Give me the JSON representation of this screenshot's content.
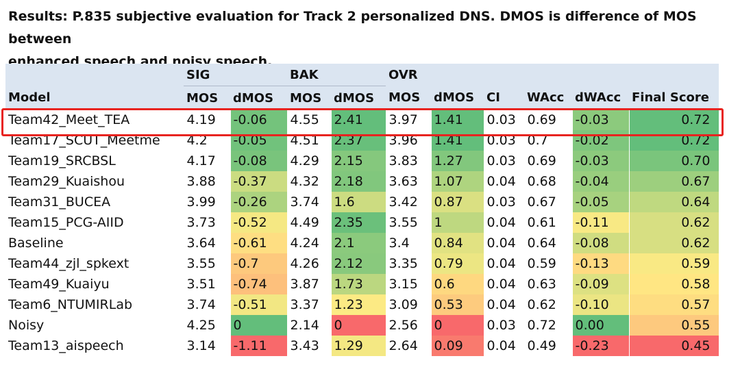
{
  "caption": {
    "line1": "Results: P.835 subjective evaluation for Track 2 personalized DNS. DMOS is difference of MOS between",
    "line2": "enhanced speech and noisy speech."
  },
  "table": {
    "groups": [
      "SIG",
      "BAK",
      "OVR"
    ],
    "headers": [
      "Model",
      "MOS",
      "dMOS",
      "MOS",
      "dMOS",
      "MOS",
      "dMOS",
      "CI",
      "WAcc",
      "dWAcc",
      "Final Score"
    ],
    "rows": [
      {
        "model": "Team42_Meet_TEA",
        "sig_mos": "4.19",
        "sig_dmos": "-0.06",
        "bak_mos": "4.55",
        "bak_dmos": "2.41",
        "ovr_mos": "3.97",
        "ovr_dmos": "1.41",
        "ci": "0.03",
        "wacc": "0.69",
        "dwacc": "-0.03",
        "final": "0.72"
      },
      {
        "model": "Team17_SCUT_Meetme",
        "sig_mos": "4.2",
        "sig_dmos": "-0.05",
        "bak_mos": "4.51",
        "bak_dmos": "2.37",
        "ovr_mos": "3.96",
        "ovr_dmos": "1.41",
        "ci": "0.03",
        "wacc": "0.7",
        "dwacc": "-0.02",
        "final": "0.72"
      },
      {
        "model": "Team19_SRCBSL",
        "sig_mos": "4.17",
        "sig_dmos": "-0.08",
        "bak_mos": "4.29",
        "bak_dmos": "2.15",
        "ovr_mos": "3.83",
        "ovr_dmos": "1.27",
        "ci": "0.03",
        "wacc": "0.69",
        "dwacc": "-0.03",
        "final": "0.70"
      },
      {
        "model": "Team29_Kuaishou",
        "sig_mos": "3.88",
        "sig_dmos": "-0.37",
        "bak_mos": "4.32",
        "bak_dmos": "2.18",
        "ovr_mos": "3.63",
        "ovr_dmos": "1.07",
        "ci": "0.04",
        "wacc": "0.68",
        "dwacc": "-0.04",
        "final": "0.67"
      },
      {
        "model": "Team31_BUCEA",
        "sig_mos": "3.99",
        "sig_dmos": "-0.26",
        "bak_mos": "3.74",
        "bak_dmos": "1.6",
        "ovr_mos": "3.42",
        "ovr_dmos": "0.87",
        "ci": "0.03",
        "wacc": "0.67",
        "dwacc": "-0.05",
        "final": "0.64"
      },
      {
        "model": "Team15_PCG-AIID",
        "sig_mos": "3.73",
        "sig_dmos": "-0.52",
        "bak_mos": "4.49",
        "bak_dmos": "2.35",
        "ovr_mos": "3.55",
        "ovr_dmos": "1",
        "ci": "0.04",
        "wacc": "0.61",
        "dwacc": "-0.11",
        "final": "0.62"
      },
      {
        "model": "Baseline",
        "sig_mos": "3.64",
        "sig_dmos": "-0.61",
        "bak_mos": "4.24",
        "bak_dmos": "2.1",
        "ovr_mos": "3.4",
        "ovr_dmos": "0.84",
        "ci": "0.04",
        "wacc": "0.64",
        "dwacc": "-0.08",
        "final": "0.62"
      },
      {
        "model": "Team44_zjl_spkext",
        "sig_mos": "3.55",
        "sig_dmos": "-0.7",
        "bak_mos": "4.26",
        "bak_dmos": "2.12",
        "ovr_mos": "3.35",
        "ovr_dmos": "0.79",
        "ci": "0.04",
        "wacc": "0.59",
        "dwacc": "-0.13",
        "final": "0.59"
      },
      {
        "model": "Team49_Kuaiyu",
        "sig_mos": "3.51",
        "sig_dmos": "-0.74",
        "bak_mos": "3.87",
        "bak_dmos": "1.73",
        "ovr_mos": "3.15",
        "ovr_dmos": "0.6",
        "ci": "0.04",
        "wacc": "0.63",
        "dwacc": "-0.09",
        "final": "0.58"
      },
      {
        "model": "Team6_NTUMIRLab",
        "sig_mos": "3.74",
        "sig_dmos": "-0.51",
        "bak_mos": "3.37",
        "bak_dmos": "1.23",
        "ovr_mos": "3.09",
        "ovr_dmos": "0.53",
        "ci": "0.04",
        "wacc": "0.62",
        "dwacc": "-0.10",
        "final": "0.57"
      },
      {
        "model": "Noisy",
        "sig_mos": "4.25",
        "sig_dmos": "0",
        "bak_mos": "2.14",
        "bak_dmos": "0",
        "ovr_mos": "2.56",
        "ovr_dmos": "0",
        "ci": "0.03",
        "wacc": "0.72",
        "dwacc": "0.00",
        "final": "0.55"
      },
      {
        "model": "Team13_aispeech",
        "sig_mos": "3.14",
        "sig_dmos": "-1.11",
        "bak_mos": "3.43",
        "bak_dmos": "1.29",
        "ovr_mos": "2.64",
        "ovr_dmos": "0.09",
        "ci": "0.04",
        "wacc": "0.49",
        "dwacc": "-0.23",
        "final": "0.45"
      }
    ]
  },
  "highlight": {
    "row": "Team42_Meet_TEA",
    "color": "#e8231f"
  },
  "colors": {
    "header_bg": "#dbe5f1",
    "scale_low": "#f8696b",
    "scale_mid": "#ffeb84",
    "scale_high": "#63be7b"
  }
}
